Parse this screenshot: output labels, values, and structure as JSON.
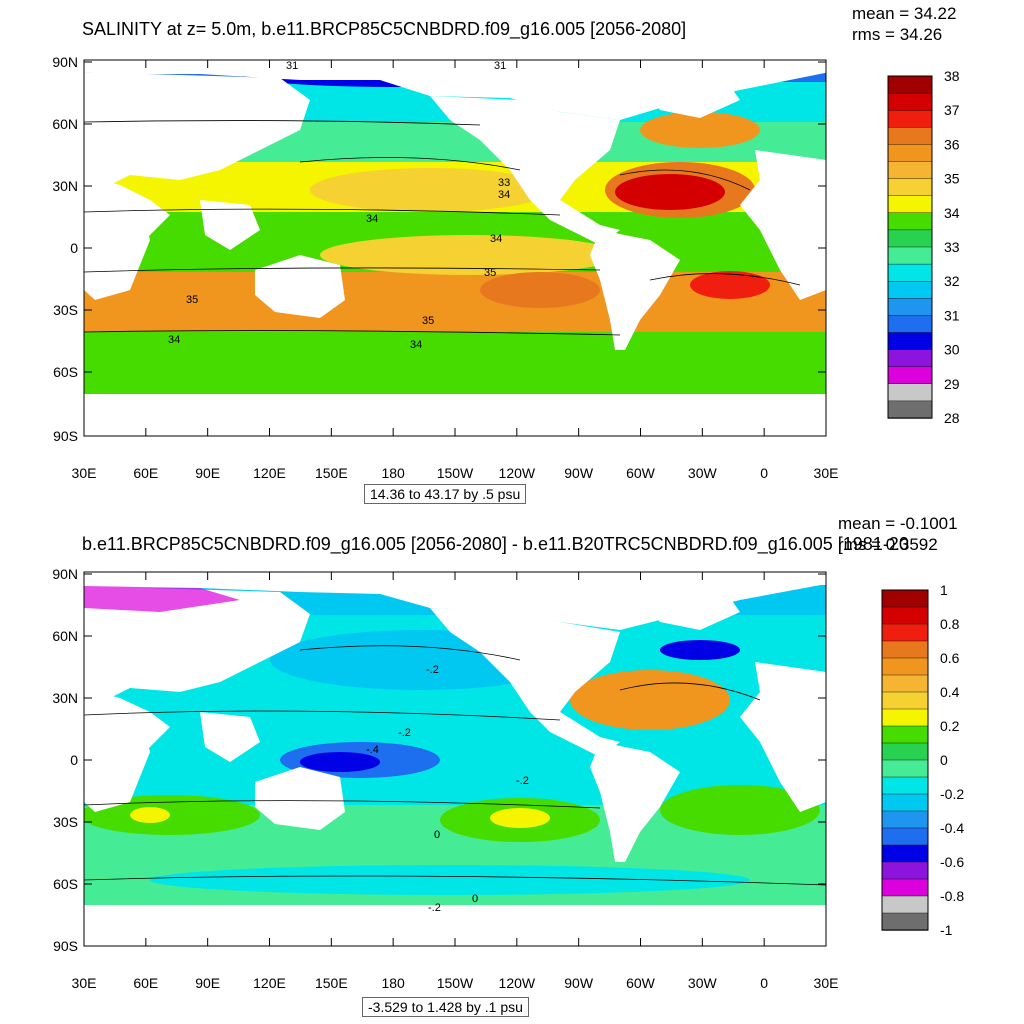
{
  "panels": [
    {
      "title": "SALINITY at z=   5.0m, b.e11.BRCP85C5CNBDRD.f09_g16.005 [2056-2080]",
      "mean_label": "mean = 34.22",
      "rms_label": "rms = 34.26",
      "range_label": "14.36 to 43.17 by .5 psu",
      "lat_ticks": [
        "90N",
        "60N",
        "30N",
        "0",
        "30S",
        "60S",
        "90S"
      ],
      "lon_ticks": [
        "30E",
        "60E",
        "90E",
        "120E",
        "150E",
        "180",
        "150W",
        "120W",
        "90W",
        "60W",
        "30W",
        "0",
        "30E"
      ],
      "colorbar_labels": [
        "38",
        "37",
        "36",
        "35",
        "34",
        "33",
        "32",
        "31",
        "30",
        "29",
        "28"
      ],
      "colorbar_colors": [
        "#a00000",
        "#d40000",
        "#f01e0e",
        "#e8781e",
        "#f0961e",
        "#f5b432",
        "#f5d232",
        "#f5f500",
        "#46dc00",
        "#28d250",
        "#46eb96",
        "#00e6e6",
        "#00c8f0",
        "#1e96f0",
        "#1e6ef0",
        "#0000e6",
        "#8c14dc",
        "#dc00dc",
        "#c8c8c8",
        "#6e6e6e"
      ],
      "contour_labels": [
        "31",
        "31",
        "33",
        "34",
        "34",
        "34",
        "35",
        "35",
        "35",
        "34",
        "34"
      ]
    },
    {
      "title": "b.e11.BRCP85C5CNBDRD.f09_g16.005 [2056-2080] - b.e11.B20TRC5CNBDRD.f09_g16.005 [1981-20",
      "mean_label": "mean = -0.1001",
      "rms_label": "rms = 0.3592",
      "range_label": "-3.529 to 1.428 by .1 psu",
      "lat_ticks": [
        "90N",
        "60N",
        "30N",
        "0",
        "30S",
        "60S",
        "90S"
      ],
      "lon_ticks": [
        "30E",
        "60E",
        "90E",
        "120E",
        "150E",
        "180",
        "150W",
        "120W",
        "90W",
        "60W",
        "30W",
        "0",
        "30E"
      ],
      "colorbar_labels": [
        "1",
        "0.8",
        "0.6",
        "0.4",
        "0.2",
        "0",
        "-0.2",
        "-0.4",
        "-0.6",
        "-0.8",
        "-1"
      ],
      "colorbar_colors": [
        "#a00000",
        "#d40000",
        "#f01e0e",
        "#e8781e",
        "#f0961e",
        "#f5b432",
        "#f5d232",
        "#f5f500",
        "#46dc00",
        "#28d250",
        "#46eb96",
        "#00e6e6",
        "#00c8f0",
        "#1e96f0",
        "#1e6ef0",
        "#0000e6",
        "#8c14dc",
        "#dc00dc",
        "#c8c8c8",
        "#6e6e6e"
      ],
      "contour_labels": [
        "-.2",
        "-.2",
        "-.4",
        "-.2",
        "0",
        "0",
        "-.2"
      ]
    }
  ],
  "colors": {
    "land": "#ffffff",
    "axis": "#000000"
  }
}
